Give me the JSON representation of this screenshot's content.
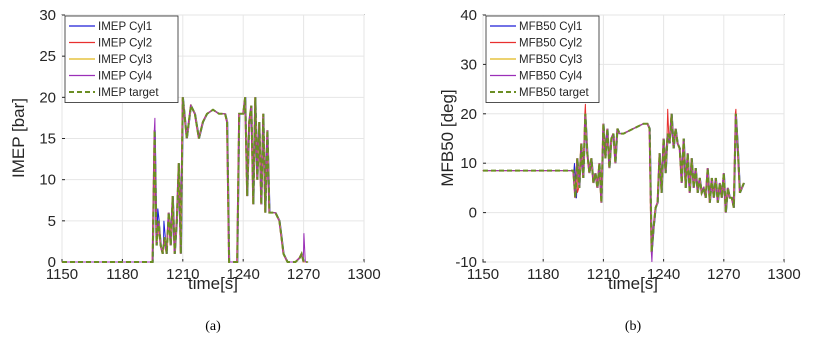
{
  "chart_data": [
    {
      "type": "line",
      "caption": "(a)",
      "xlabel": "time[s]",
      "ylabel": "IMEP [bar]",
      "xlim": [
        1150,
        1300
      ],
      "ylim": [
        0,
        30
      ],
      "xticks": [
        1150,
        1180,
        1210,
        1240,
        1270,
        1300
      ],
      "yticks": [
        0,
        5,
        10,
        15,
        20,
        25,
        30
      ],
      "grid": true,
      "legend_position": "top-left",
      "series": [
        {
          "name": "IMEP Cyl1",
          "color": "#1f1fd6",
          "style": "solid"
        },
        {
          "name": "IMEP Cyl2",
          "color": "#e8302f",
          "style": "solid"
        },
        {
          "name": "IMEP Cyl3",
          "color": "#e0b81b",
          "style": "solid"
        },
        {
          "name": "IMEP Cyl4",
          "color": "#9b2fb8",
          "style": "solid"
        },
        {
          "name": "IMEP target",
          "color": "#6b8e23",
          "style": "dashed"
        }
      ],
      "x": [
        1150,
        1180,
        1195,
        1196,
        1197,
        1198,
        1199,
        1200,
        1201,
        1202,
        1203,
        1204,
        1205,
        1206,
        1207,
        1208,
        1209,
        1210,
        1212,
        1214,
        1216,
        1218,
        1220,
        1222,
        1225,
        1228,
        1231,
        1232,
        1233,
        1234,
        1235,
        1236,
        1237,
        1238,
        1240,
        1241,
        1242,
        1243,
        1244,
        1245,
        1246,
        1247,
        1248,
        1249,
        1250,
        1251,
        1252,
        1253,
        1254,
        1256,
        1258,
        1259,
        1260,
        1262,
        1264,
        1266,
        1268,
        1269,
        1270,
        1271,
        1272
      ],
      "target": [
        0,
        0,
        0,
        16,
        2,
        5,
        2,
        1,
        3,
        1,
        6,
        2,
        8,
        1,
        5,
        12,
        1,
        20,
        15,
        19,
        18,
        15,
        17,
        18,
        18.5,
        18,
        18,
        17,
        0,
        0,
        0,
        0,
        0,
        18,
        18,
        20,
        8,
        17,
        19,
        7,
        20,
        10,
        17,
        7,
        18,
        6,
        16,
        6,
        6,
        6,
        5,
        3,
        1,
        0,
        0,
        0,
        0.5,
        1,
        0,
        0,
        0
      ],
      "cyl_deviation": [
        {
          "series": "IMEP Cyl1",
          "x": [
            1197,
            1200,
            1202
          ],
          "y": [
            6.5,
            5,
            4
          ]
        },
        {
          "series": "IMEP Cyl4",
          "x": [
            1196,
            1270
          ],
          "y": [
            17.5,
            3.5
          ]
        }
      ]
    },
    {
      "type": "line",
      "caption": "(b)",
      "xlabel": "time[s]",
      "ylabel": "MFB50 [deg]",
      "xlim": [
        1150,
        1300
      ],
      "ylim": [
        -10,
        40
      ],
      "xticks": [
        1150,
        1180,
        1210,
        1240,
        1270,
        1300
      ],
      "yticks": [
        -10,
        0,
        10,
        20,
        30,
        40
      ],
      "grid": true,
      "legend_position": "top-left",
      "series": [
        {
          "name": "MFB50 Cyl1",
          "color": "#1f1fd6",
          "style": "solid"
        },
        {
          "name": "MFB50 Cyl2",
          "color": "#e8302f",
          "style": "solid"
        },
        {
          "name": "MFB50 Cyl3",
          "color": "#e0b81b",
          "style": "solid"
        },
        {
          "name": "MFB50 Cyl4",
          "color": "#9b2fb8",
          "style": "solid"
        },
        {
          "name": "MFB50 target",
          "color": "#6b8e23",
          "style": "dashed"
        }
      ],
      "x": [
        1150,
        1195,
        1196,
        1197,
        1198,
        1199,
        1200,
        1201,
        1202,
        1203,
        1204,
        1205,
        1206,
        1207,
        1208,
        1209,
        1210,
        1211,
        1212,
        1213,
        1214,
        1215,
        1216,
        1217,
        1218,
        1220,
        1225,
        1230,
        1232,
        1233,
        1234,
        1235,
        1236,
        1237,
        1238,
        1239,
        1240,
        1241,
        1242,
        1243,
        1244,
        1245,
        1246,
        1247,
        1248,
        1249,
        1250,
        1251,
        1252,
        1253,
        1254,
        1255,
        1256,
        1257,
        1258,
        1259,
        1260,
        1261,
        1262,
        1263,
        1264,
        1265,
        1266,
        1267,
        1268,
        1269,
        1270,
        1271,
        1272,
        1273,
        1274,
        1275,
        1276,
        1277,
        1278,
        1279,
        1280
      ],
      "target": [
        8.5,
        8.5,
        3,
        11,
        5,
        14,
        7,
        20,
        12,
        8,
        11,
        6,
        8,
        5,
        10,
        2,
        18,
        11,
        17,
        9,
        15,
        16,
        10,
        17,
        16,
        16,
        17,
        18,
        18,
        17,
        -8,
        -3,
        1,
        2,
        12,
        4,
        15,
        8,
        16,
        14,
        20,
        13,
        17,
        14,
        13,
        6,
        15,
        5,
        12,
        4,
        11,
        5,
        9,
        4,
        7,
        4,
        5,
        3,
        9,
        2,
        7,
        3,
        7,
        2,
        6,
        3,
        8,
        0,
        5,
        3,
        3,
        1,
        20,
        13,
        4,
        5,
        6
      ],
      "cyl_deviation": [
        {
          "series": "MFB50 Cyl1",
          "x": [
            1195,
            1196
          ],
          "y": [
            10,
            3
          ]
        },
        {
          "series": "MFB50 Cyl2",
          "x": [
            1197,
            1201,
            1242,
            1276
          ],
          "y": [
            4,
            22,
            21,
            21
          ]
        },
        {
          "series": "MFB50 Cyl4",
          "x": [
            1234
          ],
          "y": [
            -10
          ]
        }
      ]
    }
  ]
}
